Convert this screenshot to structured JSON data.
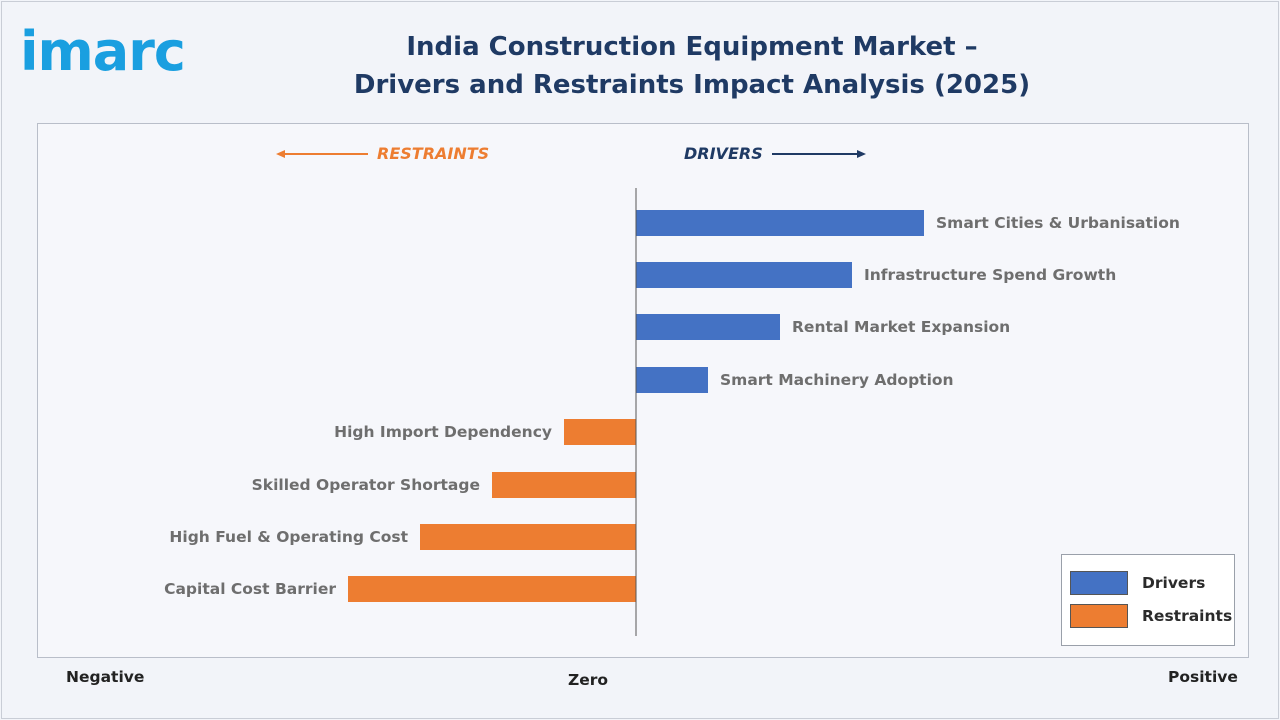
{
  "logo": {
    "text": "imarc"
  },
  "title": {
    "line1": "India Construction Equipment Market –",
    "line2": "Drivers and Restraints Impact Analysis (2025)"
  },
  "colors": {
    "drivers": "#4472c4",
    "restraints": "#ed7d31",
    "title": "#1f3a64",
    "restraints_head": "#ed7d31",
    "drivers_head": "#1f3a64"
  },
  "headers": {
    "restraints": "RESTRAINTS",
    "drivers": "DRIVERS"
  },
  "axis": {
    "negative": "Negative",
    "zero": "Zero",
    "positive": "Positive"
  },
  "legend": {
    "drivers": "Drivers",
    "restraints": "Restraints"
  },
  "chart_data": {
    "type": "bar",
    "orientation": "horizontal",
    "categories": [
      "Smart Cities & Urbanisation",
      "Infrastructure Spend Growth",
      "Rental Market Expansion",
      "Smart Machinery Adoption",
      "High Import Dependency",
      "Skilled Operator Shortage",
      "High Fuel & Operating Cost",
      "Capital Cost Barrier"
    ],
    "values": [
      4,
      3,
      2,
      1,
      -1,
      -2,
      -3,
      -4
    ],
    "series": [
      {
        "name": "Drivers",
        "values": [
          4,
          3,
          2,
          1,
          null,
          null,
          null,
          null
        ]
      },
      {
        "name": "Restraints",
        "values": [
          null,
          null,
          null,
          null,
          -1,
          -2,
          -3,
          -4
        ]
      }
    ],
    "xlim": [
      -4,
      4
    ],
    "legend_position": "bottom-right",
    "grid": false
  }
}
